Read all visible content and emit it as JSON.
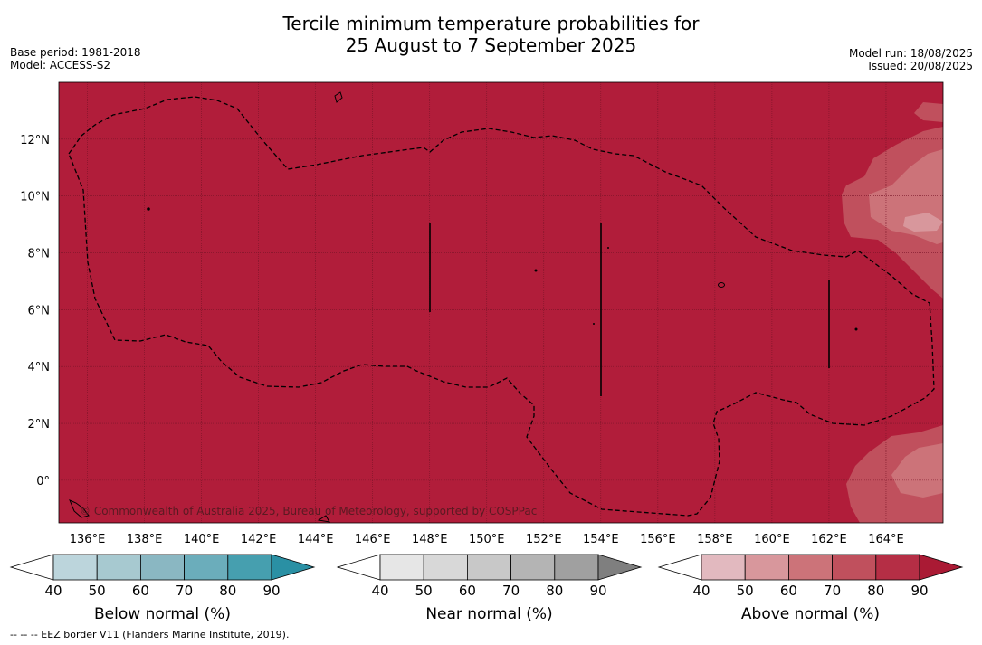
{
  "title_line1": "Tercile minimum temperature probabilities for",
  "title_line2": "25 August to 7 September 2025",
  "meta_left": [
    "Base period: 1981-2018",
    "Model: ACCESS-S2"
  ],
  "meta_right": [
    "Model run: 18/08/2025",
    "Issued: 20/08/2025"
  ],
  "lon_labels": [
    "136°E",
    "138°E",
    "140°E",
    "142°E",
    "144°E",
    "146°E",
    "148°E",
    "150°E",
    "152°E",
    "154°E",
    "156°E",
    "158°E",
    "160°E",
    "162°E",
    "164°E"
  ],
  "lon_values": [
    136,
    138,
    140,
    142,
    144,
    146,
    148,
    150,
    152,
    154,
    156,
    158,
    160,
    162,
    164
  ],
  "lat_labels": [
    "12°N",
    "10°N",
    "8°N",
    "6°N",
    "4°N",
    "2°N",
    "0°"
  ],
  "lat_values": [
    12,
    10,
    8,
    6,
    4,
    2,
    0
  ],
  "lon_range": [
    135,
    166
  ],
  "lat_range": [
    -1.5,
    14
  ],
  "copyright": "© Commonwealth of Australia 2025, Bureau of Meteorology, supported by COSPPac",
  "footer": "--  --  -- EEZ border V11 (Flanders Marine Institute, 2019).",
  "base_fill_color": "#b11d3a",
  "colorbars": [
    {
      "name": "below",
      "title": "Below normal (%)",
      "ticks": [
        "40",
        "50",
        "60",
        "70",
        "80",
        "90"
      ],
      "colors": [
        "#ffffff",
        "#bcd5dc",
        "#a7c9d0",
        "#8ab7c2",
        "#6badbb",
        "#469faf",
        "#2a90a4"
      ]
    },
    {
      "name": "near",
      "title": "Near normal (%)",
      "ticks": [
        "40",
        "50",
        "60",
        "70",
        "80",
        "90"
      ],
      "colors": [
        "#ffffff",
        "#e6e6e6",
        "#d8d8d8",
        "#c8c8c8",
        "#b4b4b4",
        "#a0a0a0",
        "#7f7f7f"
      ]
    },
    {
      "name": "above",
      "title": "Above normal (%)",
      "ticks": [
        "40",
        "50",
        "60",
        "70",
        "80",
        "90"
      ],
      "colors": [
        "#ffffff",
        "#e2b9bf",
        "#d8979c",
        "#cc7379",
        "#c0505d",
        "#b52e45",
        "#aa1a34"
      ]
    }
  ]
}
